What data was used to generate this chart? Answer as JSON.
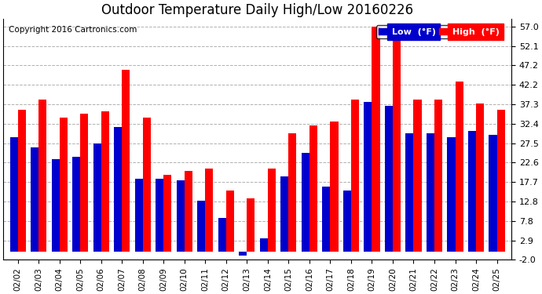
{
  "title": "Outdoor Temperature Daily High/Low 20160226",
  "copyright": "Copyright 2016 Cartronics.com",
  "legend_low": "Low  (°F)",
  "legend_high": "High  (°F)",
  "dates": [
    "02/02",
    "02/03",
    "02/04",
    "02/05",
    "02/06",
    "02/07",
    "02/08",
    "02/09",
    "02/10",
    "02/11",
    "02/12",
    "02/13",
    "02/14",
    "02/15",
    "02/16",
    "02/17",
    "02/18",
    "02/19",
    "02/20",
    "02/21",
    "02/22",
    "02/23",
    "02/24",
    "02/25"
  ],
  "highs": [
    36.0,
    38.5,
    34.0,
    35.0,
    35.5,
    46.0,
    34.0,
    19.5,
    20.5,
    21.0,
    15.5,
    13.5,
    21.0,
    30.0,
    32.0,
    33.0,
    38.5,
    57.0,
    53.5,
    38.5,
    38.5,
    43.0,
    37.5,
    36.0
  ],
  "lows": [
    29.0,
    26.5,
    23.5,
    24.0,
    27.5,
    31.5,
    18.5,
    18.5,
    18.0,
    13.0,
    8.5,
    -1.0,
    3.5,
    19.0,
    25.0,
    16.5,
    15.5,
    38.0,
    37.0,
    30.0,
    30.0,
    29.0,
    30.5,
    29.5
  ],
  "ylim": [
    -2.0,
    59.0
  ],
  "yticks": [
    -2.0,
    2.9,
    7.8,
    12.8,
    17.7,
    22.6,
    27.5,
    32.4,
    37.3,
    42.2,
    47.2,
    52.1,
    57.0
  ],
  "ytick_labels": [
    "-2.0",
    "2.9",
    "7.8",
    "12.8",
    "17.7",
    "22.6",
    "27.5",
    "32.4",
    "37.3",
    "42.2",
    "47.2",
    "52.1",
    "57.0"
  ],
  "bar_width": 0.38,
  "high_color": "#ff0000",
  "low_color": "#0000cc",
  "bg_color": "#ffffff",
  "grid_color": "#b0b0b0",
  "title_fontsize": 12,
  "copyright_fontsize": 7.5,
  "legend_fontsize": 8
}
